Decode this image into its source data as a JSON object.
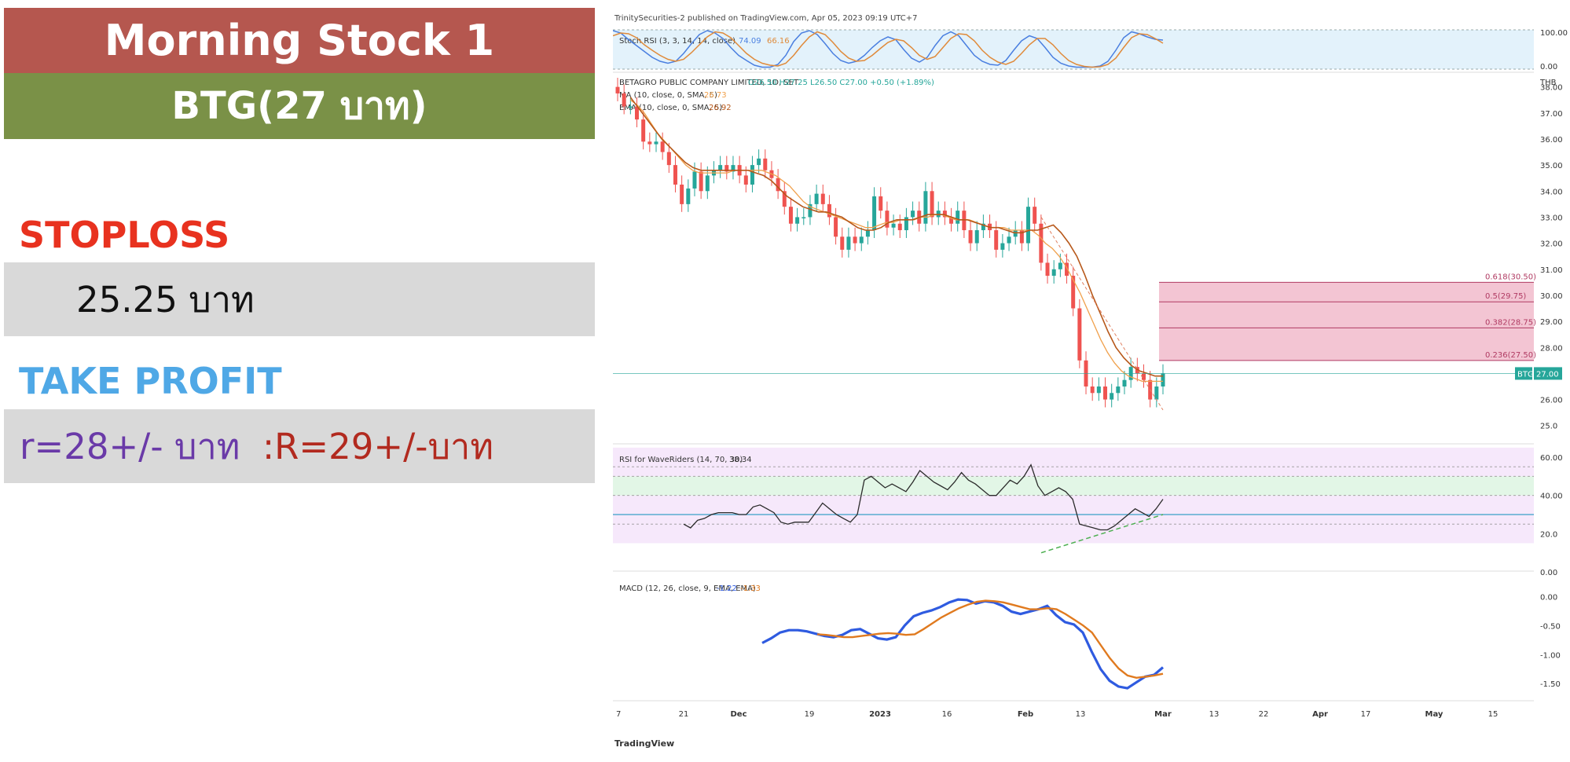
{
  "left_panel": {
    "title": "Morning Stock 1",
    "symbol_price": "BTG(27 บาท)",
    "stoploss_label": "STOPLOSS",
    "stoploss_value": "25.25 บาท",
    "take_profit_label": "TAKE PROFIT",
    "take_profit_minor": "r=28+/- บาท",
    "take_profit_major": ":R=29+/-บาท"
  },
  "chart_header": "TrinitySecurities-2 published on TradingView.com, Apr 05, 2023 09:19 UTC+7",
  "footer_logo": "TradingView",
  "colors": {
    "bull": "#26a69a",
    "bear": "#ef5350",
    "ma": "#f0a04b",
    "ema": "#b7581a",
    "fib_zone": "#f3c5d3",
    "fib_line": "#b03a62",
    "rsi_line": "#2b2b2b",
    "rsi_low": "#3aa0c8",
    "macd": "#2f5be0",
    "signal": "#e07a1f",
    "stoch_k": "#4a7fe0",
    "stoch_d": "#e08a3a"
  },
  "chart_data": {
    "type": "candlestick",
    "x_labels": [
      "7",
      "21",
      "Dec",
      "19",
      "2023",
      "16",
      "Feb",
      "13",
      "Mar",
      "13",
      "22",
      "Apr",
      "17",
      "May",
      "15"
    ],
    "stoch": {
      "label": "Stoch RSI (3, 3, 14, 14, close)",
      "k_value": "74.09",
      "d_value": "66.16",
      "ylim": [
        0,
        100
      ],
      "ticks": [
        "100.00",
        "0.00"
      ],
      "k": [
        98,
        92,
        75,
        60,
        45,
        30,
        20,
        15,
        20,
        40,
        65,
        88,
        98,
        92,
        78,
        55,
        35,
        22,
        10,
        5,
        5,
        12,
        35,
        70,
        92,
        98,
        88,
        65,
        40,
        22,
        15,
        20,
        35,
        55,
        72,
        82,
        75,
        50,
        28,
        18,
        30,
        60,
        85,
        95,
        85,
        60,
        35,
        20,
        12,
        10,
        22,
        48,
        72,
        85,
        78,
        55,
        30,
        15,
        8,
        5,
        5,
        5,
        8,
        20,
        48,
        80,
        95,
        90,
        82,
        76,
        74
      ],
      "d": [
        85,
        92,
        90,
        80,
        62,
        48,
        35,
        25,
        20,
        25,
        42,
        62,
        82,
        95,
        92,
        80,
        60,
        40,
        25,
        15,
        10,
        8,
        15,
        35,
        60,
        82,
        95,
        88,
        68,
        45,
        28,
        20,
        22,
        35,
        52,
        68,
        76,
        72,
        55,
        35,
        25,
        32,
        55,
        78,
        90,
        88,
        72,
        48,
        30,
        18,
        12,
        20,
        40,
        62,
        78,
        78,
        62,
        40,
        22,
        12,
        7,
        5,
        6,
        12,
        28,
        55,
        80,
        90,
        88,
        78,
        66
      ]
    },
    "price": {
      "label": "BETAGRO PUBLIC COMPANY LIMITED, 1D, SET",
      "ohlc_text": "O26.50 H27.25 L26.50 C27.00 +0.50 (+1.89%)",
      "ma_label": "MA (10, close, 0, SMA, 5)",
      "ma_value": "26.73",
      "ema_label": "EMA (10, close, 0, SMA, 5)",
      "ema_value": "26.92",
      "currency": "THB",
      "last_tag": "BTG",
      "last_price": "27.00",
      "last_price_num": 27.0,
      "ylim": [
        24.6,
        38.2
      ],
      "ticks": [
        "38.00",
        "37.00",
        "36.00",
        "35.00",
        "34.00",
        "33.00",
        "32.00",
        "31.00",
        "30.00",
        "29.00",
        "28.00",
        "27.00",
        "26.00",
        "25.0"
      ],
      "closes": [
        37.75,
        37.25,
        37.25,
        36.75,
        35.9,
        35.8,
        35.9,
        35.5,
        35.0,
        34.25,
        33.5,
        34.1,
        34.75,
        34.0,
        34.6,
        34.8,
        35.0,
        34.75,
        35.0,
        34.6,
        34.25,
        35.0,
        35.25,
        34.8,
        34.5,
        34.0,
        33.4,
        32.75,
        33.0,
        33.0,
        33.5,
        33.9,
        33.5,
        33.0,
        32.25,
        31.75,
        32.25,
        32.0,
        32.25,
        32.5,
        33.8,
        33.25,
        32.6,
        32.75,
        32.5,
        33.0,
        33.25,
        32.75,
        34.0,
        33.0,
        33.25,
        33.0,
        32.75,
        33.25,
        32.5,
        32.0,
        32.5,
        32.75,
        32.5,
        31.75,
        32.0,
        32.25,
        32.5,
        32.0,
        33.4,
        32.75,
        31.25,
        30.75,
        31.0,
        31.25,
        30.75,
        29.5,
        27.5,
        26.5,
        26.25,
        26.5,
        26.0,
        26.25,
        26.5,
        26.75,
        27.25,
        27.0,
        26.75,
        26.0,
        26.5,
        27.0
      ],
      "ma10": [
        37.5,
        37.3,
        37.0,
        36.6,
        36.2,
        35.9,
        35.6,
        35.3,
        35.0,
        34.8,
        34.7,
        34.7,
        34.7,
        34.7,
        34.7,
        34.8,
        34.8,
        34.8,
        34.8,
        34.8,
        34.7,
        34.6,
        34.4,
        34.2,
        33.9,
        33.6,
        33.4,
        33.3,
        33.2,
        33.1,
        33.0,
        32.9,
        32.8,
        32.7,
        32.6,
        32.6,
        32.7,
        32.8,
        32.8,
        32.9,
        32.9,
        32.9,
        33.0,
        33.0,
        33.1,
        33.1,
        33.0,
        32.9,
        32.9,
        32.9,
        32.8,
        32.7,
        32.6,
        32.6,
        32.6,
        32.5,
        32.5,
        32.5,
        32.5,
        32.3,
        32.0,
        31.8,
        31.5,
        31.1,
        30.6,
        30.1,
        29.5,
        28.9,
        28.3,
        27.8,
        27.4,
        27.1,
        26.9,
        26.8,
        26.7,
        26.7,
        26.7,
        26.7
      ],
      "ema10": [
        37.6,
        37.2,
        36.8,
        36.4,
        36.0,
        35.7,
        35.4,
        35.1,
        34.9,
        34.8,
        34.8,
        34.8,
        34.8,
        34.8,
        34.8,
        34.8,
        34.7,
        34.6,
        34.4,
        34.1,
        33.8,
        33.6,
        33.4,
        33.3,
        33.2,
        33.2,
        33.1,
        33.0,
        32.8,
        32.6,
        32.5,
        32.5,
        32.6,
        32.8,
        32.9,
        32.9,
        32.9,
        33.0,
        33.1,
        33.1,
        33.1,
        33.0,
        32.9,
        32.9,
        32.8,
        32.7,
        32.6,
        32.6,
        32.5,
        32.4,
        32.4,
        32.5,
        32.5,
        32.6,
        32.7,
        32.4,
        32.0,
        31.5,
        30.8,
        30.0,
        29.3,
        28.6,
        28.0,
        27.6,
        27.3,
        27.1,
        27.0,
        26.9,
        26.9
      ],
      "fib_levels": [
        {
          "label": "0.618(30.50)",
          "value": 30.5
        },
        {
          "label": "0.5(29.75)",
          "value": 29.75
        },
        {
          "label": "0.382(28.75)",
          "value": 28.75
        },
        {
          "label": "0.236(27.50)",
          "value": 27.5
        }
      ]
    },
    "rsi": {
      "label": "RSI for WaveRiders (14, 70, 30)",
      "value": "38.34",
      "ylim": [
        0,
        60
      ],
      "ticks": [
        "60.00",
        "40.00",
        "20.0",
        "0.00"
      ],
      "values": [
        25,
        23,
        27,
        28,
        30,
        31,
        31,
        31,
        30,
        30,
        34,
        35,
        33,
        31,
        26,
        25,
        26,
        26,
        26,
        31,
        36,
        33,
        30,
        28,
        26,
        30,
        48,
        50,
        47,
        44,
        46,
        44,
        42,
        47,
        53,
        50,
        47,
        45,
        43,
        47,
        52,
        48,
        46,
        43,
        40,
        40,
        44,
        48,
        46,
        50,
        56,
        45,
        40,
        42,
        44,
        42,
        38,
        25,
        24,
        23,
        22,
        22,
        24,
        27,
        30,
        33,
        31,
        29,
        33,
        38
      ]
    },
    "macd": {
      "label": "MACD (12, 26, close, 9, EMA, EMA)",
      "macd_value": "-1.22",
      "signal_value": "-1.33",
      "ylim": [
        -1.7,
        0.1
      ],
      "ticks": [
        "0.00",
        "-0.50",
        "-1.00",
        "-1.50"
      ],
      "macd": [
        -0.8,
        -0.72,
        -0.62,
        -0.58,
        -0.58,
        -0.6,
        -0.64,
        -0.68,
        -0.7,
        -0.66,
        -0.58,
        -0.56,
        -0.64,
        -0.72,
        -0.74,
        -0.7,
        -0.5,
        -0.34,
        -0.28,
        -0.24,
        -0.18,
        -0.1,
        -0.05,
        -0.06,
        -0.12,
        -0.08,
        -0.1,
        -0.16,
        -0.26,
        -0.3,
        -0.26,
        -0.22,
        -0.16,
        -0.32,
        -0.44,
        -0.48,
        -0.62,
        -0.95,
        -1.25,
        -1.45,
        -1.55,
        -1.58,
        -1.48,
        -1.38,
        -1.35,
        -1.22
      ],
      "signal": [
        -0.65,
        -0.66,
        -0.68,
        -0.7,
        -0.7,
        -0.68,
        -0.66,
        -0.64,
        -0.63,
        -0.64,
        -0.66,
        -0.65,
        -0.56,
        -0.46,
        -0.36,
        -0.28,
        -0.2,
        -0.14,
        -0.09,
        -0.07,
        -0.08,
        -0.1,
        -0.14,
        -0.18,
        -0.22,
        -0.22,
        -0.2,
        -0.22,
        -0.3,
        -0.4,
        -0.5,
        -0.62,
        -0.84,
        -1.06,
        -1.24,
        -1.36,
        -1.4,
        -1.38,
        -1.36,
        -1.33
      ],
      "macd_start": 0.12,
      "signal_start": 0.3
    }
  }
}
